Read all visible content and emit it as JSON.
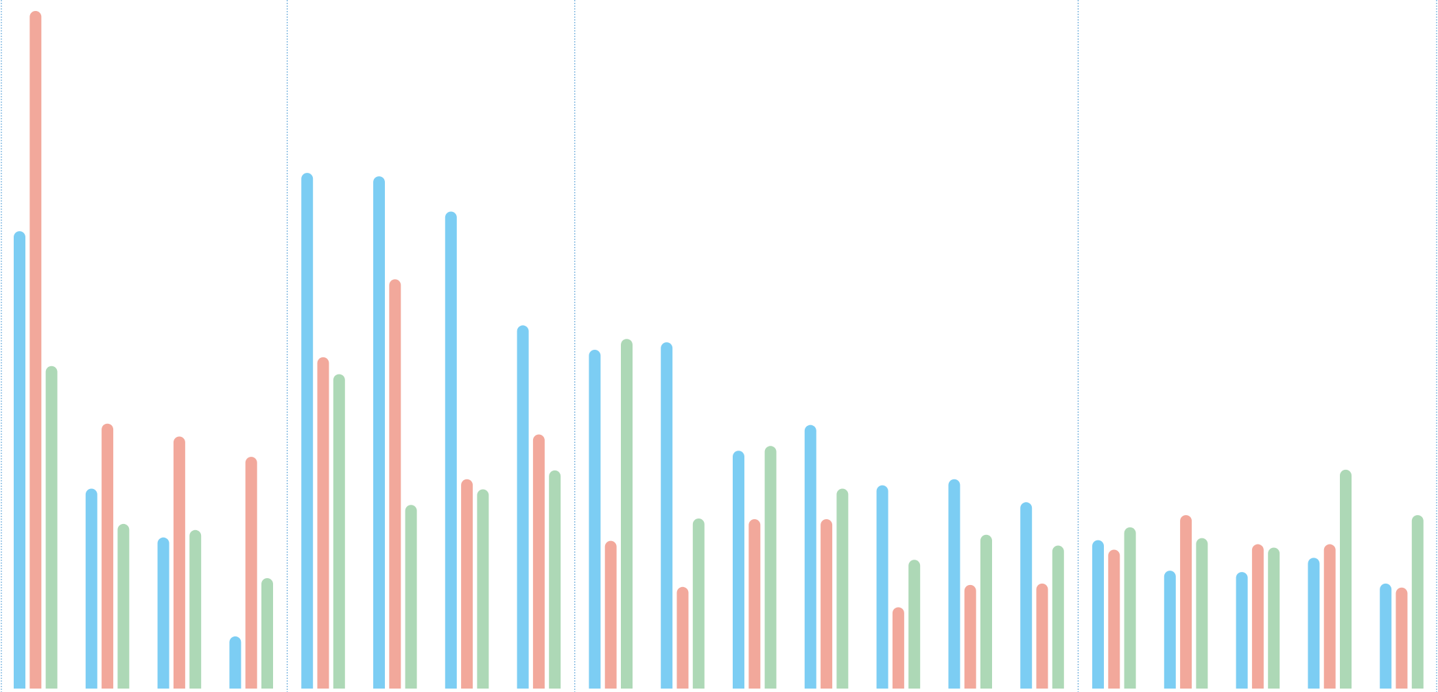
{
  "colors": {
    "series_blue": "#7ccdf3",
    "series_red": "#f2a89b",
    "series_green": "#add8b6",
    "divider": "#4a9ad4"
  },
  "chart_data": {
    "type": "bar",
    "title": "",
    "xlabel": "",
    "ylabel": "",
    "ylim": [
      0,
      100
    ],
    "grid": false,
    "legend": "none",
    "bar_style": "rounded-top",
    "group_dividers_after_index": [
      3,
      7,
      14
    ],
    "categories": [
      "",
      "",
      "",
      "",
      "",
      "",
      "",
      "",
      "",
      "",
      "",
      "",
      "",
      "",
      "",
      "",
      "",
      "",
      "",
      ""
    ],
    "series": [
      {
        "color": "#7ccdf3",
        "values": [
          67.5,
          29.5,
          22.3,
          7.7,
          76.1,
          75.6,
          70.4,
          53.6,
          50.0,
          51.1,
          35.1,
          38.9,
          30.0,
          30.9,
          27.5,
          21.9,
          17.4,
          17.2,
          19.3,
          15.5
        ]
      },
      {
        "color": "#f2a89b",
        "values": [
          100.0,
          39.1,
          37.2,
          34.2,
          48.9,
          60.4,
          30.9,
          37.5,
          21.8,
          15.0,
          25.0,
          25.0,
          12.0,
          15.3,
          15.5,
          20.5,
          25.6,
          21.3,
          21.3,
          14.9
        ]
      },
      {
        "color": "#add8b6",
        "values": [
          47.6,
          24.3,
          23.4,
          16.3,
          46.4,
          27.1,
          29.4,
          32.2,
          51.6,
          25.1,
          35.8,
          29.5,
          19.0,
          22.7,
          21.1,
          23.8,
          22.2,
          20.8,
          32.3,
          25.6
        ]
      }
    ]
  }
}
